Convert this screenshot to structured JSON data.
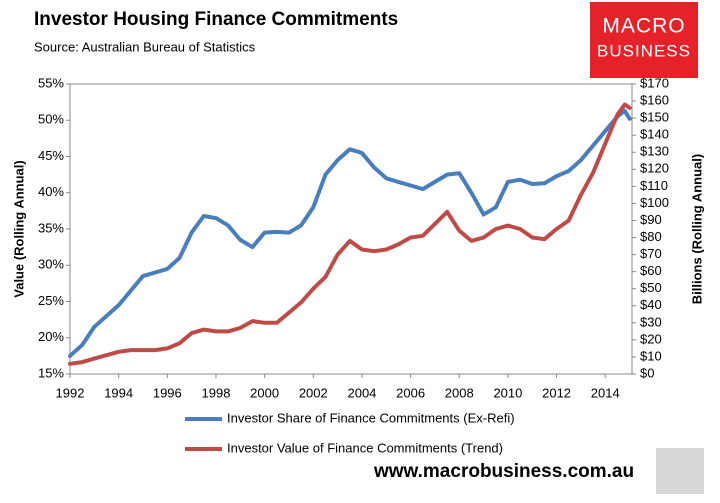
{
  "chart_data": {
    "type": "line",
    "title": "Investor Housing Finance Commitments",
    "subtitle": "Source: Australian Bureau of Statistics",
    "y_label": "Value (Rolling Annual)",
    "y2_label": "Billions (Rolling Annual)",
    "x": [
      1992,
      1992.5,
      1993,
      1993.5,
      1994,
      1994.5,
      1995,
      1995.5,
      1996,
      1996.5,
      1997,
      1997.5,
      1998,
      1998.5,
      1999,
      1999.5,
      2000,
      2000.5,
      2001,
      2001.5,
      2002,
      2002.5,
      2003,
      2003.5,
      2004,
      2004.5,
      2005,
      2005.5,
      2006,
      2006.5,
      2007,
      2007.5,
      2008,
      2008.5,
      2009,
      2009.5,
      2010,
      2010.5,
      2011,
      2011.5,
      2012,
      2012.5,
      2013,
      2013.5,
      2014,
      2014.5,
      2014.8,
      2015
    ],
    "series": [
      {
        "name": "Investor Share of Finance Commitments (Ex-Refi)",
        "color": "#4a7ebb",
        "axis": "y",
        "values": [
          17.5,
          19,
          21.5,
          23,
          24.5,
          26.5,
          28.5,
          29,
          29.5,
          31,
          34.5,
          36.8,
          36.5,
          35.5,
          33.5,
          32.5,
          34.5,
          34.6,
          34.5,
          35.5,
          38,
          42.5,
          44.5,
          46,
          45.5,
          43.5,
          42,
          41.5,
          41,
          40.5,
          41.5,
          42.5,
          42.7,
          40,
          37,
          38,
          41.5,
          41.8,
          41.2,
          41.3,
          42.3,
          43,
          44.5,
          46.5,
          48.5,
          50.5,
          51.3,
          50.2
        ]
      },
      {
        "name": "Investor Value of Finance Commitments (Trend)",
        "color": "#be4b48",
        "axis": "y2",
        "values": [
          6,
          7,
          9,
          11,
          13,
          14,
          14,
          14,
          15,
          18,
          24,
          26,
          25,
          25,
          27,
          31,
          30,
          30,
          36,
          42,
          50,
          57,
          70,
          78,
          73,
          72,
          73,
          76,
          80,
          81,
          88,
          95,
          84,
          78,
          80,
          85,
          87,
          85,
          80,
          79,
          85,
          90,
          105,
          118,
          135,
          152,
          158,
          156
        ]
      }
    ],
    "xlim": [
      1992,
      2015.1
    ],
    "xticks": [
      1992,
      1994,
      1996,
      1998,
      2000,
      2002,
      2004,
      2006,
      2008,
      2010,
      2012,
      2014
    ],
    "ylim": [
      15,
      55
    ],
    "yticks": [
      {
        "value": 15,
        "label": "15%"
      },
      {
        "value": 20,
        "label": "20%"
      },
      {
        "value": 25,
        "label": "25%"
      },
      {
        "value": 30,
        "label": "30%"
      },
      {
        "value": 35,
        "label": "35%"
      },
      {
        "value": 40,
        "label": "40%"
      },
      {
        "value": 45,
        "label": "45%"
      },
      {
        "value": 50,
        "label": "50%"
      },
      {
        "value": 55,
        "label": "55%"
      }
    ],
    "y2lim": [
      0,
      170
    ],
    "y2ticks": [
      {
        "value": 0,
        "label": "$0"
      },
      {
        "value": 10,
        "label": "$10"
      },
      {
        "value": 20,
        "label": "$20"
      },
      {
        "value": 30,
        "label": "$30"
      },
      {
        "value": 40,
        "label": "$40"
      },
      {
        "value": 50,
        "label": "$50"
      },
      {
        "value": 60,
        "label": "$60"
      },
      {
        "value": 70,
        "label": "$70"
      },
      {
        "value": 80,
        "label": "$80"
      },
      {
        "value": 90,
        "label": "$90"
      },
      {
        "value": 100,
        "label": "$100"
      },
      {
        "value": 110,
        "label": "$110"
      },
      {
        "value": 120,
        "label": "$120"
      },
      {
        "value": 130,
        "label": "$130"
      },
      {
        "value": 140,
        "label": "$140"
      },
      {
        "value": 150,
        "label": "$150"
      },
      {
        "value": 160,
        "label": "$160"
      },
      {
        "value": 170,
        "label": "$170"
      }
    ],
    "grid": false,
    "legend": "bottom"
  },
  "logo": {
    "line1": "MACRO",
    "line2": "BUSINESS"
  },
  "footer": "www.macrobusiness.com.au"
}
